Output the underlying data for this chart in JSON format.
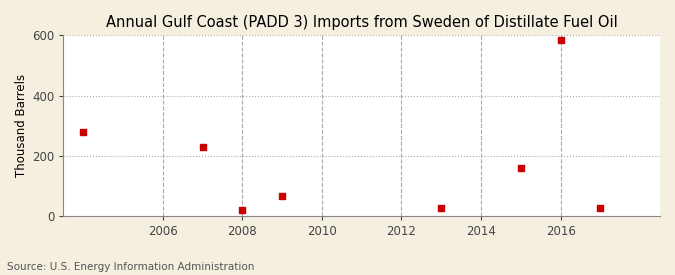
{
  "title": "Annual Gulf Coast (PADD 3) Imports from Sweden of Distillate Fuel Oil",
  "ylabel": "Thousand Barrels",
  "source": "Source: U.S. Energy Information Administration",
  "background_color": "#f5efe0",
  "plot_background_color": "#ffffff",
  "marker_color": "#cc0000",
  "marker_size": 25,
  "marker_style": "s",
  "years": [
    2004,
    2007,
    2008,
    2009,
    2013,
    2015,
    2016,
    2017
  ],
  "values": [
    280,
    230,
    20,
    65,
    25,
    160,
    585,
    25
  ],
  "xlim": [
    2003.5,
    2018.5
  ],
  "ylim": [
    0,
    600
  ],
  "xticks": [
    2006,
    2008,
    2010,
    2012,
    2014,
    2016
  ],
  "yticks": [
    0,
    200,
    400,
    600
  ],
  "grid_color": "#aaaaaa",
  "grid_style": "--",
  "title_fontsize": 10.5,
  "label_fontsize": 8.5,
  "tick_fontsize": 8.5,
  "source_fontsize": 7.5
}
